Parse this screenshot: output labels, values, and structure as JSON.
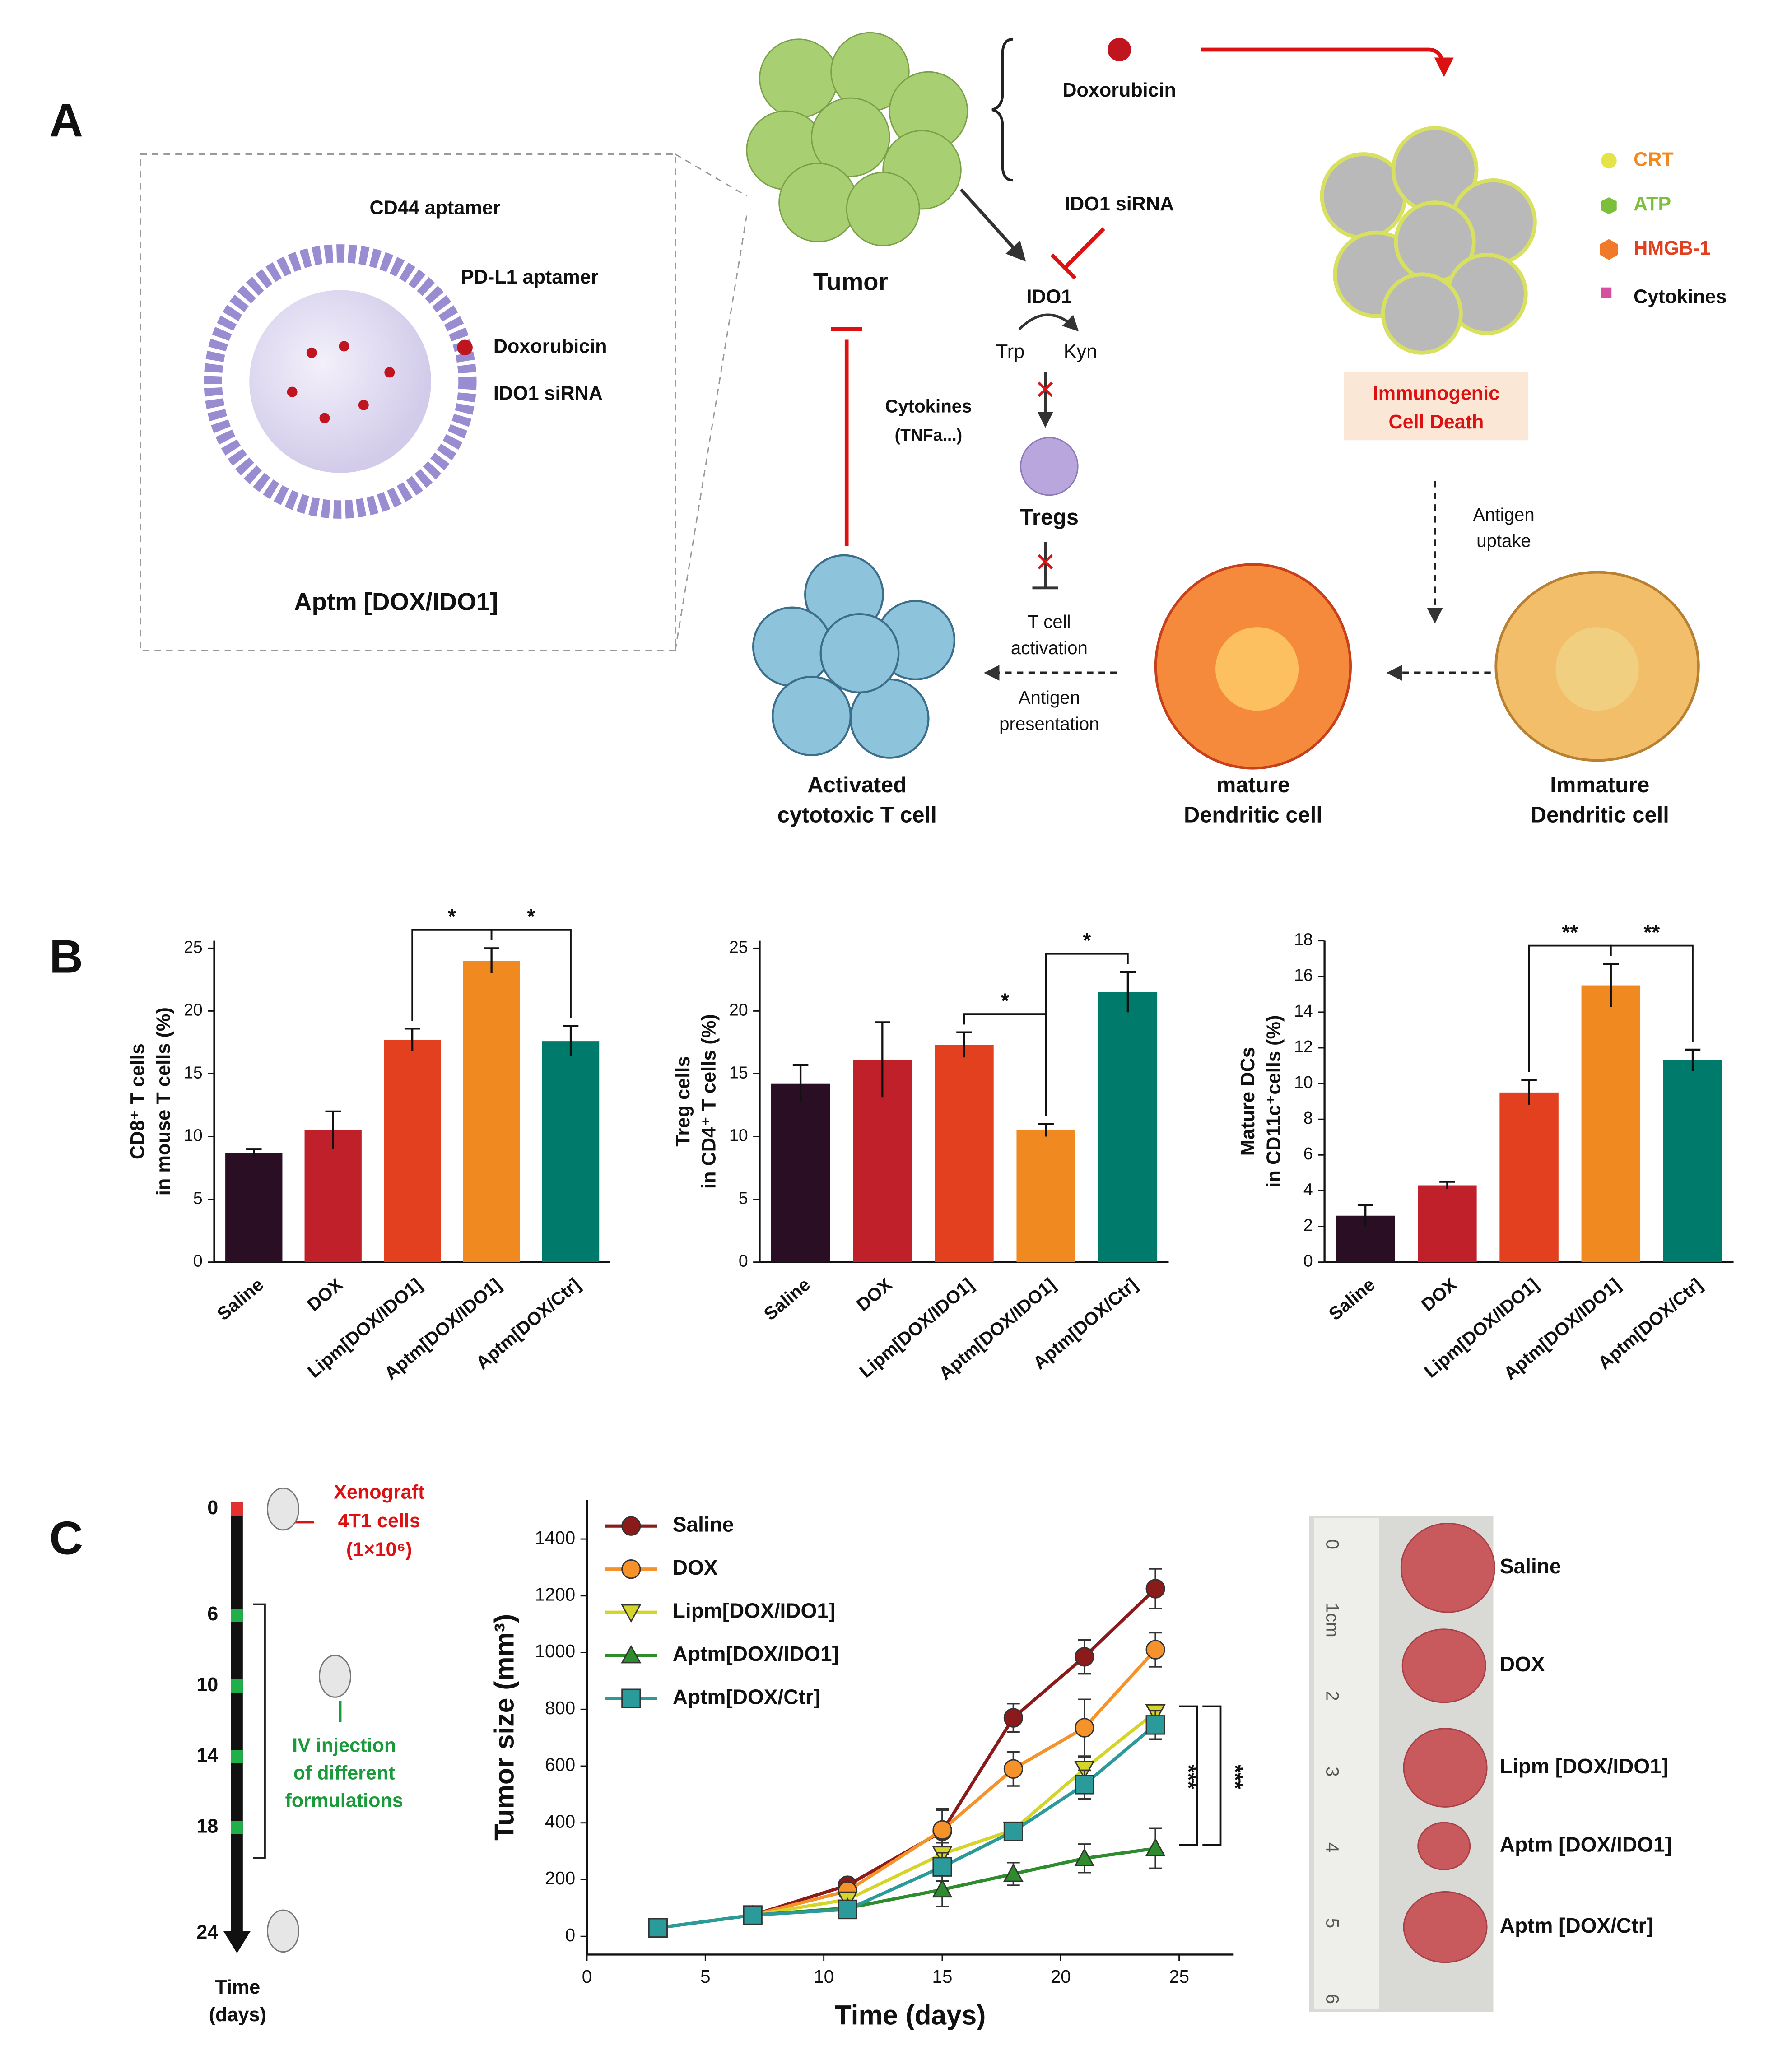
{
  "panels": [
    "A",
    "B",
    "C"
  ],
  "diagram": {
    "nanoparticle": [
      "CD44 aptamer",
      "PD-L1 aptamer",
      "Doxorubicin",
      "IDO1 siRNA",
      "Aptm [DOX/IDO1]"
    ],
    "tumor": "Tumor",
    "drugs": [
      "Doxorubicin",
      "IDO1 siRNA"
    ],
    "ido1": [
      "IDO1",
      "Trp",
      "Kyn"
    ],
    "tregs": "Tregs",
    "cytokines": [
      "Cytokines",
      "(TNFa...)"
    ],
    "activation": [
      "T cell",
      "activation"
    ],
    "presentation": [
      "Antigen",
      "presentation"
    ],
    "tcell": [
      "Activated",
      "cytotoxic T cell"
    ],
    "mature": [
      "mature",
      "Dendritic cell"
    ],
    "immature": [
      "Immature",
      "Dendritic cell"
    ],
    "uptake": [
      "Antigen",
      "uptake"
    ],
    "icd": [
      "Immunogenic",
      "Cell Death"
    ],
    "legend": [
      "CRT",
      "ATP",
      "HMGB-1",
      "Cytokines"
    ]
  },
  "chart_data": [
    {
      "type": "bar",
      "ylabel": [
        "CD8⁺ T cells",
        "in mouse T cells (%)"
      ],
      "categories": [
        "Saline",
        "DOX",
        "Lipm[DOX/IDO1]",
        "Aptm[DOX/IDO1]",
        "Aptm[DOX/Ctr]"
      ],
      "values": [
        8.7,
        10.5,
        17.7,
        24.0,
        17.6
      ],
      "errors": [
        0.3,
        1.5,
        0.9,
        1.0,
        1.2
      ],
      "colors": [
        "#2a0f24",
        "#c0202a",
        "#e2401f",
        "#f08a20",
        "#007a6a"
      ],
      "ylim": [
        0,
        25.6
      ],
      "yticks": [
        0,
        5,
        10,
        15,
        20,
        25
      ],
      "significance": [
        "*",
        "*"
      ]
    },
    {
      "type": "bar",
      "ylabel": [
        "Treg cells",
        "in CD4⁺ T cells (%)"
      ],
      "categories": [
        "Saline",
        "DOX",
        "Lipm[DOX/IDO1]",
        "Aptm[DOX/IDO1]",
        "Aptm[DOX/Ctr]"
      ],
      "values": [
        14.2,
        16.1,
        17.3,
        10.5,
        21.5
      ],
      "errors": [
        1.5,
        3.0,
        1.0,
        0.5,
        1.6
      ],
      "colors": [
        "#2a0f24",
        "#c0202a",
        "#e2401f",
        "#f08a20",
        "#007a6a"
      ],
      "ylim": [
        0,
        25.6
      ],
      "yticks": [
        0,
        5,
        10,
        15,
        20,
        25
      ],
      "significance": [
        "*",
        "*"
      ]
    },
    {
      "type": "bar",
      "ylabel": [
        "Mature DCs",
        "in CD11c⁺cells (%)"
      ],
      "categories": [
        "Saline",
        "DOX",
        "Lipm[DOX/IDO1]",
        "Aptm[DOX/IDO1]",
        "Aptm[DOX/Ctr]"
      ],
      "values": [
        2.6,
        4.3,
        9.5,
        15.5,
        11.3
      ],
      "errors": [
        0.6,
        0.2,
        0.7,
        1.2,
        0.6
      ],
      "colors": [
        "#2a0f24",
        "#c0202a",
        "#e2401f",
        "#f08a20",
        "#007a6a"
      ],
      "ylim": [
        0,
        18
      ],
      "yticks": [
        0,
        2,
        4,
        6,
        8,
        10,
        12,
        14,
        16,
        18
      ],
      "significance": [
        "**",
        "**"
      ]
    },
    {
      "type": "line",
      "xlabel": "Time (days)",
      "ylabel": "Tumor size (mm³)",
      "x": [
        3,
        7,
        11,
        15,
        18,
        21,
        24
      ],
      "series": [
        {
          "name": "Saline",
          "color": "#8b1a1a",
          "marker": "circle",
          "values": [
            30,
            75,
            180,
            370,
            770,
            985,
            1225
          ],
          "errors": [
            10,
            10,
            15,
            80,
            50,
            60,
            70
          ]
        },
        {
          "name": "DOX",
          "color": "#f5922a",
          "marker": "circle",
          "values": [
            30,
            75,
            160,
            375,
            590,
            735,
            1010
          ],
          "errors": [
            10,
            10,
            15,
            70,
            60,
            100,
            60
          ]
        },
        {
          "name": "Lipm[DOX/IDO1]",
          "color": "#d4d42a",
          "marker": "triangle-down",
          "values": [
            30,
            75,
            130,
            290,
            375,
            590,
            790
          ],
          "errors": [
            10,
            10,
            15,
            40,
            20,
            40,
            20
          ]
        },
        {
          "name": "Aptm[DOX/IDO1]",
          "color": "#2e8b2e",
          "marker": "triangle",
          "values": [
            30,
            75,
            100,
            165,
            220,
            275,
            310
          ],
          "errors": [
            10,
            10,
            10,
            60,
            40,
            50,
            70
          ]
        },
        {
          "name": "Aptm[DOX/Ctr]",
          "color": "#2a9a9a",
          "marker": "square",
          "values": [
            30,
            75,
            95,
            245,
            370,
            535,
            745
          ],
          "errors": [
            10,
            10,
            10,
            50,
            30,
            50,
            50
          ]
        }
      ],
      "xlim": [
        0,
        27.3
      ],
      "xticks": [
        0,
        5,
        10,
        15,
        20,
        25
      ],
      "ylim": [
        -64,
        1538
      ],
      "yticks": [
        0,
        200,
        400,
        600,
        800,
        1000,
        1200,
        1400
      ],
      "significance": [
        "***",
        "***"
      ]
    }
  ],
  "timeline": {
    "ticks": [
      0,
      6,
      10,
      14,
      18,
      24
    ],
    "ylim": [
      0,
      24
    ],
    "xlabel": [
      "Time",
      "(days)"
    ],
    "xenograft": [
      "Xenograft",
      "4T1 cells",
      "(1×10⁶)"
    ],
    "injection": [
      "IV injection",
      "of different",
      "formulations"
    ]
  },
  "photo": {
    "ruler": [
      "0",
      "1cm",
      "2",
      "3",
      "4",
      "5",
      "6"
    ],
    "labels": [
      "Saline",
      "DOX",
      "Lipm [DOX/IDO1]",
      "Aptm [DOX/IDO1]",
      "Aptm [DOX/Ctr]"
    ]
  }
}
